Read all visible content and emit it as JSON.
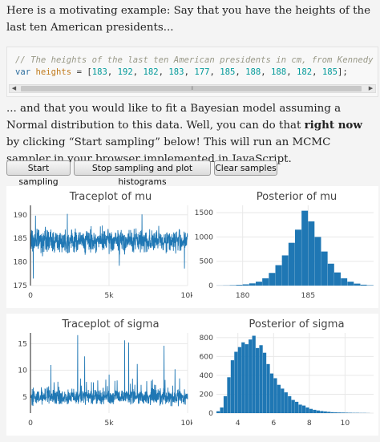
{
  "intro": {
    "text": "Here is a motivating example: Say that you have the heights of the last ten American presidents..."
  },
  "code": {
    "comment": "// The heights of the last ten American presidents in cm, from Kennedy to Obama",
    "keyword": "var",
    "variable": "heights",
    "assign": " = [",
    "values": [
      "183",
      "192",
      "182",
      "183",
      "177",
      "185",
      "188",
      "188",
      "182",
      "185"
    ],
    "close": "];"
  },
  "explain": {
    "before": "... and that you would like to fit a Bayesian model assuming a Normal distribution to this data. Well, you can do that ",
    "bold": "right now",
    "after": " by clicking “Start sampling” below! This will run an MCMC sampler in your browser implemented in JavaScript."
  },
  "buttons": {
    "start": "Start sampling",
    "stop": "Stop sampling and plot histograms",
    "clear": "Clear samples"
  },
  "colors": {
    "series": "#1f77b4",
    "grid": "#e8e8e8",
    "axis": "#444444"
  },
  "chart_data": [
    {
      "type": "line",
      "title": "Traceplot of mu",
      "xlabel": "",
      "ylabel": "",
      "xlim": [
        0,
        10000
      ],
      "ylim": [
        175,
        192
      ],
      "xticks": [
        0,
        5000,
        10000
      ],
      "xtick_labels": [
        "0",
        "5k",
        "10k"
      ],
      "yticks": [
        175,
        180,
        185,
        190
      ],
      "ytick_labels": [
        "175",
        "180",
        "185",
        "190"
      ],
      "grid": true,
      "series": [
        {
          "summary": "MCMC trace of mu over 10000 iterations fluctuating around 184.5",
          "center": 184.5,
          "spread": 2.6,
          "spikes": [
            {
              "x": 180,
              "y": 176.5
            },
            {
              "x": 320,
              "y": 189.8
            },
            {
              "x": 2350,
              "y": 190.2
            },
            {
              "x": 5650,
              "y": 179.2
            },
            {
              "x": 7100,
              "y": 190.1
            },
            {
              "x": 9800,
              "y": 178.6
            }
          ]
        }
      ]
    },
    {
      "type": "bar",
      "title": "Posterior of mu",
      "xlim": [
        178,
        190
      ],
      "ylim": [
        0,
        1650
      ],
      "xticks": [
        180,
        185
      ],
      "xtick_labels": [
        "180",
        "185"
      ],
      "yticks": [
        0,
        500,
        1000,
        1500
      ],
      "ytick_labels": [
        "0",
        "500",
        "1000",
        "1500"
      ],
      "grid": true,
      "bin_width": 0.5,
      "x": [
        178.0,
        178.5,
        179.0,
        179.5,
        180.0,
        180.5,
        181.0,
        181.5,
        182.0,
        182.5,
        183.0,
        183.5,
        184.0,
        184.5,
        185.0,
        185.5,
        186.0,
        186.5,
        187.0,
        187.5,
        188.0,
        188.5,
        189.0,
        189.5
      ],
      "values": [
        2,
        4,
        8,
        15,
        25,
        45,
        80,
        150,
        260,
        420,
        620,
        880,
        1150,
        1540,
        1320,
        1000,
        700,
        450,
        270,
        150,
        80,
        40,
        18,
        8
      ]
    },
    {
      "type": "line",
      "title": "Traceplot of sigma",
      "xlabel": "",
      "ylabel": "",
      "xlim": [
        0,
        10000
      ],
      "ylim": [
        2,
        17
      ],
      "xticks": [
        0,
        5000,
        10000
      ],
      "xtick_labels": [
        "0",
        "5k",
        "10k"
      ],
      "yticks": [
        5,
        10,
        15
      ],
      "ytick_labels": [
        "5",
        "10",
        "15"
      ],
      "grid": true,
      "series": [
        {
          "summary": "MCMC trace of sigma over 10000 iterations around 5 with occasional tall spikes",
          "center": 5.0,
          "spread": 1.5,
          "spikes": [
            {
              "x": 1300,
              "y": 11.0
            },
            {
              "x": 3000,
              "y": 16.6
            },
            {
              "x": 3450,
              "y": 12.6
            },
            {
              "x": 5000,
              "y": 9.2
            },
            {
              "x": 6000,
              "y": 15.6
            },
            {
              "x": 6250,
              "y": 15.2
            },
            {
              "x": 6800,
              "y": 11.2
            },
            {
              "x": 8500,
              "y": 14.6
            },
            {
              "x": 9200,
              "y": 10.2
            }
          ]
        }
      ]
    },
    {
      "type": "bar",
      "title": "Posterior of sigma",
      "xlim": [
        2.8,
        11.6
      ],
      "ylim": [
        0,
        850
      ],
      "xticks": [
        4,
        6,
        8,
        10
      ],
      "xtick_labels": [
        "4",
        "6",
        "8",
        "10"
      ],
      "yticks": [
        0,
        200,
        400,
        600,
        800
      ],
      "ytick_labels": [
        "0",
        "200",
        "400",
        "600",
        "800"
      ],
      "grid": true,
      "bin_width": 0.2,
      "x": [
        2.8,
        3.0,
        3.2,
        3.4,
        3.6,
        3.8,
        4.0,
        4.2,
        4.4,
        4.6,
        4.8,
        5.0,
        5.2,
        5.4,
        5.6,
        5.8,
        6.0,
        6.2,
        6.4,
        6.6,
        6.8,
        7.0,
        7.2,
        7.4,
        7.6,
        7.8,
        8.0,
        8.2,
        8.4,
        8.6,
        8.8,
        9.0,
        9.2,
        9.4,
        9.6,
        9.8,
        10.0,
        10.2,
        10.4,
        10.6,
        10.8,
        11.0,
        11.2
      ],
      "values": [
        20,
        60,
        180,
        380,
        560,
        650,
        700,
        750,
        730,
        780,
        820,
        690,
        720,
        640,
        520,
        420,
        370,
        300,
        260,
        220,
        180,
        140,
        120,
        90,
        80,
        60,
        45,
        35,
        28,
        22,
        18,
        14,
        10,
        8,
        7,
        6,
        5,
        4,
        3,
        3,
        2,
        2,
        1
      ]
    }
  ]
}
